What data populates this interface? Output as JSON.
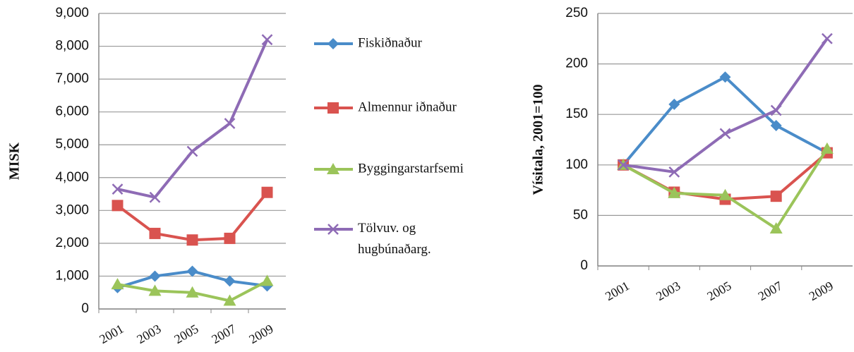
{
  "chart_data": [
    {
      "type": "line",
      "y_label": "MISK",
      "categories": [
        "2001",
        "2003",
        "2005",
        "2007",
        "2009"
      ],
      "ylim": [
        0,
        9000
      ],
      "yticks": [
        0,
        {
          "value": 1000,
          "label": "1,000"
        },
        {
          "value": 2000,
          "label": "2,000"
        },
        {
          "value": 3000,
          "label": "3,000"
        },
        {
          "value": 4000,
          "label": "4,000"
        },
        {
          "value": 5000,
          "label": "5,000"
        },
        {
          "value": 6000,
          "label": "6,000"
        },
        {
          "value": 7000,
          "label": "7,000"
        },
        {
          "value": 8000,
          "label": "8,000"
        },
        {
          "value": 9000,
          "label": "9,000"
        }
      ],
      "grid": true,
      "series": [
        {
          "name": "Fiskiðnaður",
          "color": "#4a8cc9",
          "marker": "diamond",
          "values": [
            650,
            1000,
            1150,
            850,
            700
          ]
        },
        {
          "name": "Almennur iðnaður",
          "color": "#d9534f",
          "marker": "square",
          "values": [
            3150,
            2300,
            2100,
            2150,
            3550
          ]
        },
        {
          "name": "Byggingarstarfsemi",
          "color": "#9bc45a",
          "marker": "triangle",
          "values": [
            750,
            550,
            500,
            250,
            850
          ]
        },
        {
          "name": "Tölvuv. og hugbúnaðarg.",
          "color": "#8e6bb5",
          "marker": "x",
          "values": [
            3650,
            3400,
            4800,
            5650,
            8200
          ]
        }
      ]
    },
    {
      "type": "line",
      "y_label": "Vísitala, 2001=100",
      "categories": [
        "2001",
        "2003",
        "2005",
        "2007",
        "2009"
      ],
      "ylim": [
        0,
        250
      ],
      "yticks": [
        0,
        50,
        100,
        150,
        200,
        250
      ],
      "grid": true,
      "series": [
        {
          "color": "#4a8cc9",
          "marker": "diamond",
          "values": [
            100,
            160,
            187,
            139,
            112
          ]
        },
        {
          "color": "#d9534f",
          "marker": "square",
          "values": [
            100,
            73,
            66,
            69,
            112
          ]
        },
        {
          "color": "#9bc45a",
          "marker": "triangle",
          "values": [
            100,
            72,
            70,
            37,
            116
          ]
        },
        {
          "color": "#8e6bb5",
          "marker": "x",
          "values": [
            100,
            93,
            131,
            154,
            225
          ]
        }
      ]
    }
  ]
}
